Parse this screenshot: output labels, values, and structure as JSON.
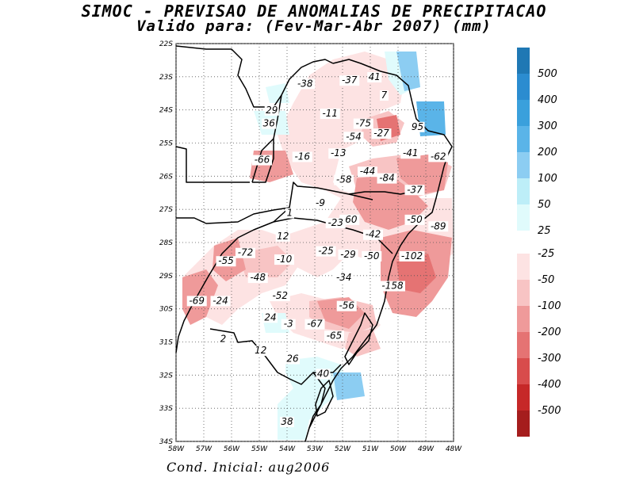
{
  "title": {
    "line1": "SIMOC - PREVISAO DE ANOMALIAS DE PRECIPITACAO",
    "line2": "Valido para: (Fev-Mar-Abr 2007) (mm)"
  },
  "footer": "Cond. Inicial: aug2006",
  "axes": {
    "lat_labels": [
      "22S",
      "23S",
      "24S",
      "25S",
      "26S",
      "27S",
      "28S",
      "29S",
      "30S",
      "31S",
      "32S",
      "33S",
      "34S"
    ],
    "lon_labels": [
      "58W",
      "57W",
      "56W",
      "55W",
      "54W",
      "53W",
      "52W",
      "51W",
      "50W",
      "49W",
      "48W"
    ],
    "lat_range": [
      -34,
      -22
    ],
    "lon_range": [
      -58,
      -48
    ]
  },
  "colorbar": {
    "positive": [
      {
        "label": "500",
        "color": "#1f78b4"
      },
      {
        "label": "400",
        "color": "#2b8cd0"
      },
      {
        "label": "300",
        "color": "#3aa0dc"
      },
      {
        "label": "200",
        "color": "#5ab4e8"
      },
      {
        "label": "100",
        "color": "#8ccdf2"
      },
      {
        "label": "50",
        "color": "#bdeef8"
      },
      {
        "label": "25",
        "color": "#e0fbfc"
      }
    ],
    "negative": [
      {
        "label": "-25",
        "color": "#fde3e3"
      },
      {
        "label": "-50",
        "color": "#f8c4c4"
      },
      {
        "label": "-100",
        "color": "#ef9a9a"
      },
      {
        "label": "-200",
        "color": "#e57373"
      },
      {
        "label": "-300",
        "color": "#d84c4c"
      },
      {
        "label": "-400",
        "color": "#c62828"
      },
      {
        "label": "-500",
        "color": "#a51d1d"
      }
    ]
  },
  "anomaly_labels": [
    {
      "text": "-38",
      "lon": -53.35,
      "lat": -23.3
    },
    {
      "text": "-37",
      "lon": -51.75,
      "lat": -23.2
    },
    {
      "text": "41",
      "lon": -50.85,
      "lat": -23.1
    },
    {
      "text": "7",
      "lon": -50.5,
      "lat": -23.65
    },
    {
      "text": "29",
      "lon": -54.55,
      "lat": -24.1
    },
    {
      "text": "36",
      "lon": -54.65,
      "lat": -24.5
    },
    {
      "text": "-11",
      "lon": -52.45,
      "lat": -24.2
    },
    {
      "text": "-75",
      "lon": -51.25,
      "lat": -24.5
    },
    {
      "text": "95",
      "lon": -49.3,
      "lat": -24.6
    },
    {
      "text": "-27",
      "lon": -50.6,
      "lat": -24.8
    },
    {
      "text": "-54",
      "lon": -51.6,
      "lat": -24.9
    },
    {
      "text": "-13",
      "lon": -52.15,
      "lat": -25.4
    },
    {
      "text": "-16",
      "lon": -53.45,
      "lat": -25.5
    },
    {
      "text": "-66",
      "lon": -54.9,
      "lat": -25.6
    },
    {
      "text": "-41",
      "lon": -49.55,
      "lat": -25.4
    },
    {
      "text": "-62",
      "lon": -48.55,
      "lat": -25.5
    },
    {
      "text": "-44",
      "lon": -51.1,
      "lat": -25.95
    },
    {
      "text": "-58",
      "lon": -51.95,
      "lat": -26.2
    },
    {
      "text": "-84",
      "lon": -50.4,
      "lat": -26.15
    },
    {
      "text": "-37",
      "lon": -49.4,
      "lat": -26.5
    },
    {
      "text": "-9",
      "lon": -52.8,
      "lat": -26.9
    },
    {
      "text": "1",
      "lon": -53.9,
      "lat": -27.2
    },
    {
      "text": "-60",
      "lon": -51.75,
      "lat": -27.4
    },
    {
      "text": "-23",
      "lon": -52.25,
      "lat": -27.5
    },
    {
      "text": "-50",
      "lon": -49.4,
      "lat": -27.4
    },
    {
      "text": "-89",
      "lon": -48.55,
      "lat": -27.6
    },
    {
      "text": "-42",
      "lon": -50.9,
      "lat": -27.85
    },
    {
      "text": "12",
      "lon": -54.15,
      "lat": -27.9
    },
    {
      "text": "-72",
      "lon": -55.5,
      "lat": -28.4
    },
    {
      "text": "-10",
      "lon": -54.1,
      "lat": -28.6
    },
    {
      "text": "-25",
      "lon": -52.6,
      "lat": -28.35
    },
    {
      "text": "-29",
      "lon": -51.8,
      "lat": -28.45
    },
    {
      "text": "-50",
      "lon": -50.95,
      "lat": -28.5
    },
    {
      "text": "-102",
      "lon": -49.5,
      "lat": -28.5
    },
    {
      "text": "-55",
      "lon": -56.2,
      "lat": -28.65
    },
    {
      "text": "-48",
      "lon": -55.05,
      "lat": -29.15
    },
    {
      "text": "-34",
      "lon": -51.95,
      "lat": -29.15
    },
    {
      "text": "-158",
      "lon": -50.2,
      "lat": -29.4
    },
    {
      "text": "-69",
      "lon": -57.25,
      "lat": -29.85
    },
    {
      "text": "-24",
      "lon": -56.4,
      "lat": -29.85
    },
    {
      "text": "-52",
      "lon": -54.25,
      "lat": -29.7
    },
    {
      "text": "-56",
      "lon": -51.85,
      "lat": -30.0
    },
    {
      "text": "24",
      "lon": -54.6,
      "lat": -30.35
    },
    {
      "text": "-3",
      "lon": -53.95,
      "lat": -30.55
    },
    {
      "text": "-67",
      "lon": -53.0,
      "lat": -30.55
    },
    {
      "text": "-65",
      "lon": -52.3,
      "lat": -30.9
    },
    {
      "text": "2",
      "lon": -56.3,
      "lat": -31.0
    },
    {
      "text": "12",
      "lon": -54.95,
      "lat": -31.35
    },
    {
      "text": "26",
      "lon": -53.8,
      "lat": -31.6
    },
    {
      "text": "40",
      "lon": -52.7,
      "lat": -32.05
    },
    {
      "text": "38",
      "lon": -54.0,
      "lat": -33.5
    }
  ]
}
